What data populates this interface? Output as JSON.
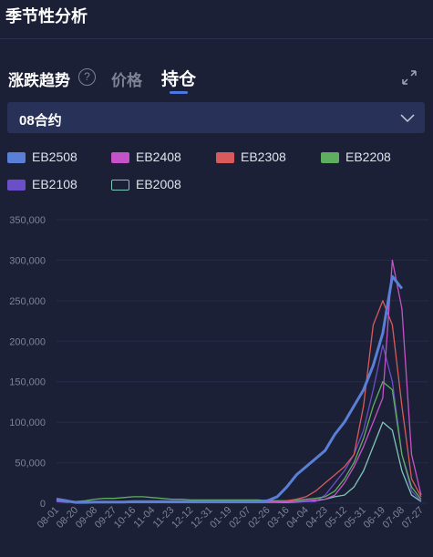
{
  "header": {
    "title": "季节性分析"
  },
  "tabs": [
    "涨跌趋势",
    "价格",
    "持仓"
  ],
  "help_icon": "?",
  "dropdown": "08合约",
  "chart_data": {
    "type": "line",
    "categories": [
      "08-01",
      null,
      "08-20",
      null,
      "09-08",
      null,
      "09-27",
      null,
      "10-16",
      null,
      "11-04",
      null,
      "11-23",
      null,
      "12-12",
      null,
      "12-31",
      null,
      "01-19",
      null,
      "02-07",
      null,
      "02-26",
      null,
      "03-16",
      null,
      "04-04",
      null,
      "04-23",
      null,
      "05-12",
      null,
      "05-31",
      null,
      "06-19",
      null,
      "07-08",
      null,
      "07-27"
    ],
    "ylim": [
      0,
      350000
    ],
    "yticks": [
      {
        "value": 0,
        "label": "0"
      },
      {
        "value": 50000,
        "label": "50,000"
      },
      {
        "value": 100000,
        "label": "100,000"
      },
      {
        "value": 150000,
        "label": "150,000"
      },
      {
        "value": 200000,
        "label": "200,000"
      },
      {
        "value": 250000,
        "label": "250,000"
      },
      {
        "value": 300000,
        "label": "300,000"
      },
      {
        "value": 350000,
        "label": "350,000"
      }
    ],
    "grid": true,
    "series": [
      {
        "name": "EB2508",
        "color": "#5a7fd6",
        "values": [
          5000,
          3000,
          1000,
          1000,
          1500,
          1500,
          1500,
          1500,
          2000,
          2000,
          2000,
          2000,
          2000,
          2000,
          2000,
          2000,
          2000,
          2000,
          2000,
          2000,
          2000,
          2000,
          3000,
          8000,
          20000,
          35000,
          45000,
          55000,
          65000,
          85000,
          100000,
          120000,
          140000,
          170000,
          210000,
          280000,
          265000,
          null,
          null
        ]
      },
      {
        "name": "EB2408",
        "color": "#c552c8",
        "values": [
          3000,
          2500,
          1000,
          1000,
          1000,
          1000,
          1000,
          1000,
          1000,
          1000,
          1000,
          1000,
          1000,
          1000,
          1000,
          1000,
          1000,
          1000,
          1000,
          1000,
          1000,
          1000,
          1000,
          1500,
          2000,
          2500,
          3000,
          4000,
          5000,
          10000,
          25000,
          45000,
          70000,
          100000,
          130000,
          300000,
          240000,
          60000,
          10000
        ]
      },
      {
        "name": "EB2308",
        "color": "#d85a5a",
        "values": [
          6000,
          4000,
          1000,
          1000,
          1000,
          1000,
          1000,
          1000,
          1000,
          1000,
          1000,
          1000,
          1000,
          1000,
          1000,
          1000,
          1000,
          1000,
          1000,
          1000,
          1000,
          1000,
          1500,
          2000,
          3000,
          5000,
          8000,
          15000,
          25000,
          35000,
          45000,
          60000,
          120000,
          220000,
          250000,
          220000,
          120000,
          30000,
          8000
        ]
      },
      {
        "name": "EB2208",
        "color": "#5fae5f",
        "values": [
          4000,
          3000,
          2000,
          3000,
          5000,
          6000,
          6000,
          7000,
          8000,
          8000,
          7000,
          6000,
          5000,
          5000,
          4000,
          4000,
          4000,
          4000,
          4000,
          4000,
          4000,
          4000,
          3000,
          3000,
          3000,
          4000,
          5000,
          6000,
          8000,
          15000,
          30000,
          50000,
          80000,
          120000,
          150000,
          140000,
          60000,
          20000,
          5000
        ]
      },
      {
        "name": "EB2108",
        "color": "#6a4fc8",
        "values": [
          2000,
          2000,
          1500,
          1500,
          1500,
          1500,
          1500,
          1500,
          1500,
          1500,
          1500,
          1500,
          1500,
          1500,
          1500,
          1500,
          1500,
          1500,
          1500,
          1500,
          1500,
          1500,
          2000,
          2000,
          2000,
          2000,
          2000,
          2000,
          10000,
          25000,
          40000,
          60000,
          90000,
          140000,
          195000,
          150000,
          60000,
          15000,
          3000
        ]
      },
      {
        "name": "EB2008",
        "color": "#7fc6b8",
        "values": [
          2000,
          1500,
          1000,
          1000,
          1000,
          1000,
          1000,
          1000,
          1000,
          1000,
          1000,
          1000,
          1000,
          1000,
          1000,
          1000,
          1000,
          1000,
          1000,
          1000,
          1000,
          1000,
          1000,
          1000,
          1000,
          1500,
          2000,
          3000,
          5000,
          8000,
          10000,
          20000,
          40000,
          70000,
          100000,
          90000,
          40000,
          10000,
          2000
        ]
      }
    ]
  }
}
